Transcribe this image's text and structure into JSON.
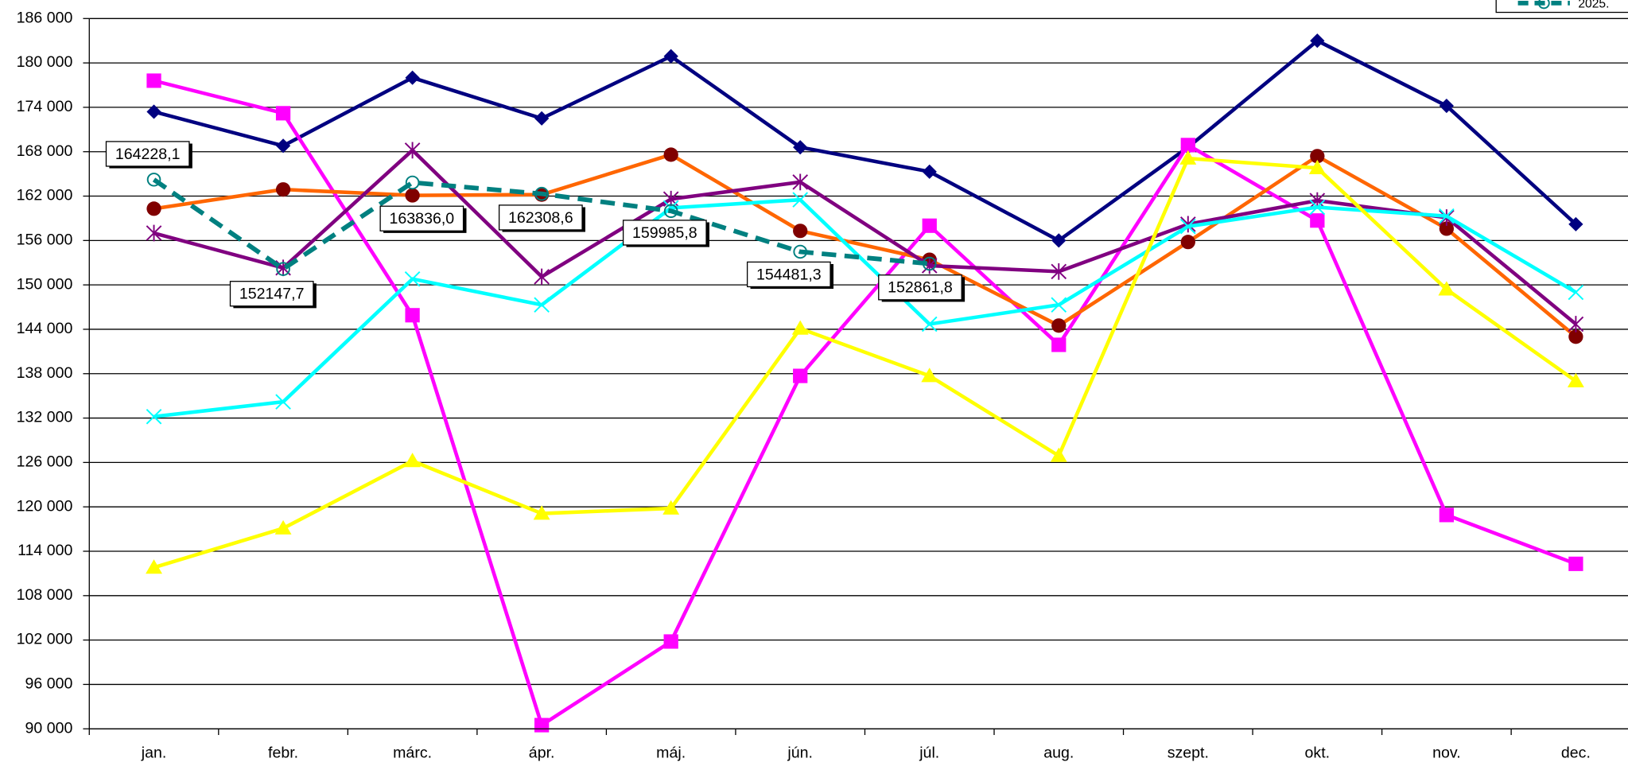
{
  "chart_data": {
    "type": "line",
    "categories": [
      "jan.",
      "febr.",
      "márc.",
      "ápr.",
      "máj.",
      "jún.",
      "júl.",
      "aug.",
      "szept.",
      "okt.",
      "nov.",
      "dec."
    ],
    "ylim": [
      90000,
      186000
    ],
    "yticks": [
      {
        "value": 90000,
        "label": "90 000"
      },
      {
        "value": 96000,
        "label": "96 000"
      },
      {
        "value": 102000,
        "label": "102 000"
      },
      {
        "value": 108000,
        "label": "108 000"
      },
      {
        "value": 114000,
        "label": "114 000"
      },
      {
        "value": 120000,
        "label": "120 000"
      },
      {
        "value": 126000,
        "label": "126 000"
      },
      {
        "value": 132000,
        "label": "132 000"
      },
      {
        "value": 138000,
        "label": "138 000"
      },
      {
        "value": 144000,
        "label": "144 000"
      },
      {
        "value": 150000,
        "label": "150 000"
      },
      {
        "value": 156000,
        "label": "156 000"
      },
      {
        "value": 162000,
        "label": "162 000"
      },
      {
        "value": 168000,
        "label": "168 000"
      },
      {
        "value": 174000,
        "label": "174 000"
      },
      {
        "value": 180000,
        "label": "180 000"
      },
      {
        "value": 186000,
        "label": "186 000"
      }
    ],
    "grid": true,
    "series": [
      {
        "color": "#000080",
        "marker": "diamond",
        "marker_color": "#000080",
        "values": [
          173400,
          168800,
          178000,
          172500,
          180900,
          168600,
          165300,
          156000,
          168600,
          183000,
          174200,
          158200
        ]
      },
      {
        "color": "#ff00ff",
        "marker": "square",
        "marker_color": "#ff00ff",
        "values": [
          177600,
          173200,
          145900,
          90500,
          101800,
          137700,
          158000,
          141900,
          168900,
          158700,
          118900,
          112300
        ]
      },
      {
        "color": "#ff6600",
        "marker": "circle",
        "marker_color": "#800000",
        "values": [
          160300,
          162900,
          162100,
          162200,
          167600,
          157300,
          153400,
          144500,
          155800,
          167400,
          157600,
          143000
        ]
      },
      {
        "color": "#800080",
        "marker": "star",
        "marker_color": "#800080",
        "values": [
          157000,
          152300,
          168200,
          151100,
          161600,
          163900,
          152600,
          151800,
          158200,
          161400,
          159100,
          144700
        ]
      },
      {
        "color": "#00ffff",
        "marker": "x",
        "marker_color": "#00ffff",
        "values": [
          132200,
          134200,
          150800,
          147300,
          160400,
          161500,
          144700,
          147300,
          157900,
          160500,
          159300,
          149000
        ]
      },
      {
        "color": "#ffff00",
        "marker": "triangle",
        "marker_color": "#ffff00",
        "values": [
          111800,
          117100,
          126200,
          119100,
          119800,
          144100,
          137700,
          126900,
          167100,
          165800,
          149400,
          137000
        ]
      },
      {
        "name": "2025.",
        "color": "#008080",
        "marker": "open-circle",
        "marker_color": "#008080",
        "dashed": true,
        "values": [
          164228.1,
          152147.7,
          163836.0,
          162308.6,
          159985.8,
          154481.3,
          152861.8,
          null,
          null,
          null,
          null,
          null
        ],
        "value_labels": [
          "164228,1",
          "152147,7",
          "163836,0",
          "162308,6",
          "159985,8",
          "154481,3",
          "152861,8",
          null,
          null,
          null,
          null,
          null
        ]
      }
    ]
  }
}
